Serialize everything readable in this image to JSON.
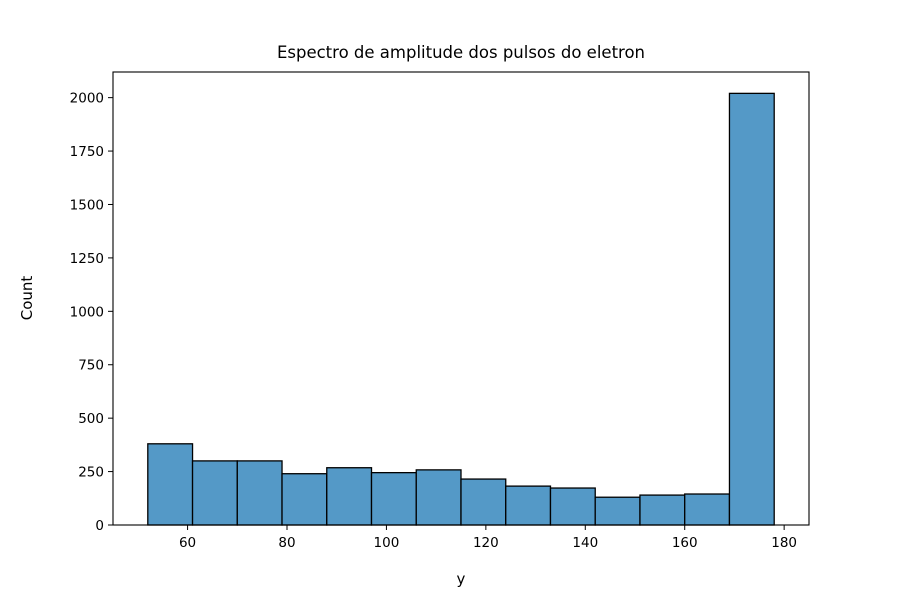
{
  "chart_data": {
    "type": "bar",
    "title": "Espectro de amplitude dos pulsos do eletron",
    "xlabel": "y",
    "ylabel": "Count",
    "xlim": [
      45,
      185
    ],
    "ylim": [
      0,
      2120
    ],
    "x_ticks": [
      60,
      80,
      100,
      120,
      140,
      160,
      180
    ],
    "y_ticks": [
      0,
      250,
      500,
      750,
      1000,
      1250,
      1500,
      1750,
      2000
    ],
    "grid": false,
    "bar_color": "#5499c7",
    "edge_color": "#000000",
    "bins": [
      {
        "x0": 52,
        "x1": 61,
        "count": 380
      },
      {
        "x0": 61,
        "x1": 70,
        "count": 300
      },
      {
        "x0": 70,
        "x1": 79,
        "count": 300
      },
      {
        "x0": 79,
        "x1": 88,
        "count": 240
      },
      {
        "x0": 88,
        "x1": 97,
        "count": 268
      },
      {
        "x0": 97,
        "x1": 106,
        "count": 245
      },
      {
        "x0": 106,
        "x1": 115,
        "count": 258
      },
      {
        "x0": 115,
        "x1": 124,
        "count": 215
      },
      {
        "x0": 124,
        "x1": 133,
        "count": 182
      },
      {
        "x0": 133,
        "x1": 142,
        "count": 173
      },
      {
        "x0": 142,
        "x1": 151,
        "count": 130
      },
      {
        "x0": 151,
        "x1": 160,
        "count": 140
      },
      {
        "x0": 160,
        "x1": 169,
        "count": 145
      },
      {
        "x0": 169,
        "x1": 178,
        "count": 2020
      }
    ]
  }
}
